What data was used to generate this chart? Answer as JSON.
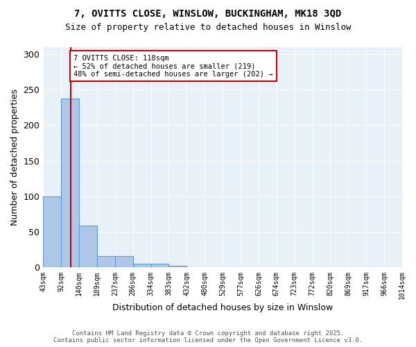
{
  "title1": "7, OVITTS CLOSE, WINSLOW, BUCKINGHAM, MK18 3QD",
  "title2": "Size of property relative to detached houses in Winslow",
  "xlabel": "Distribution of detached houses by size in Winslow",
  "ylabel": "Number of detached properties",
  "bin_labels": [
    "43sqm",
    "92sqm",
    "140sqm",
    "189sqm",
    "237sqm",
    "286sqm",
    "334sqm",
    "383sqm",
    "432sqm",
    "480sqm",
    "529sqm",
    "577sqm",
    "626sqm",
    "674sqm",
    "723sqm",
    "772sqm",
    "820sqm",
    "869sqm",
    "917sqm",
    "966sqm",
    "1014sqm"
  ],
  "bar_heights": [
    100,
    237,
    59,
    16,
    16,
    5,
    5,
    2,
    0,
    0,
    0,
    0,
    0,
    0,
    0,
    0,
    0,
    0,
    0,
    0
  ],
  "bar_color": "#aec6e8",
  "bar_edge_color": "#5a9fd4",
  "annotation_text": "7 OVITTS CLOSE: 118sqm\n← 52% of detached houses are smaller (219)\n48% of semi-detached houses are larger (202) →",
  "annotation_box_color": "#ffffff",
  "annotation_border_color": "#cc0000",
  "ylim": [
    0,
    310
  ],
  "yticks": [
    0,
    50,
    100,
    150,
    200,
    250,
    300
  ],
  "bg_color": "#e8f0f8",
  "footer1": "Contains HM Land Registry data © Crown copyright and database right 2025.",
  "footer2": "Contains public sector information licensed under the Open Government Licence v3.0."
}
